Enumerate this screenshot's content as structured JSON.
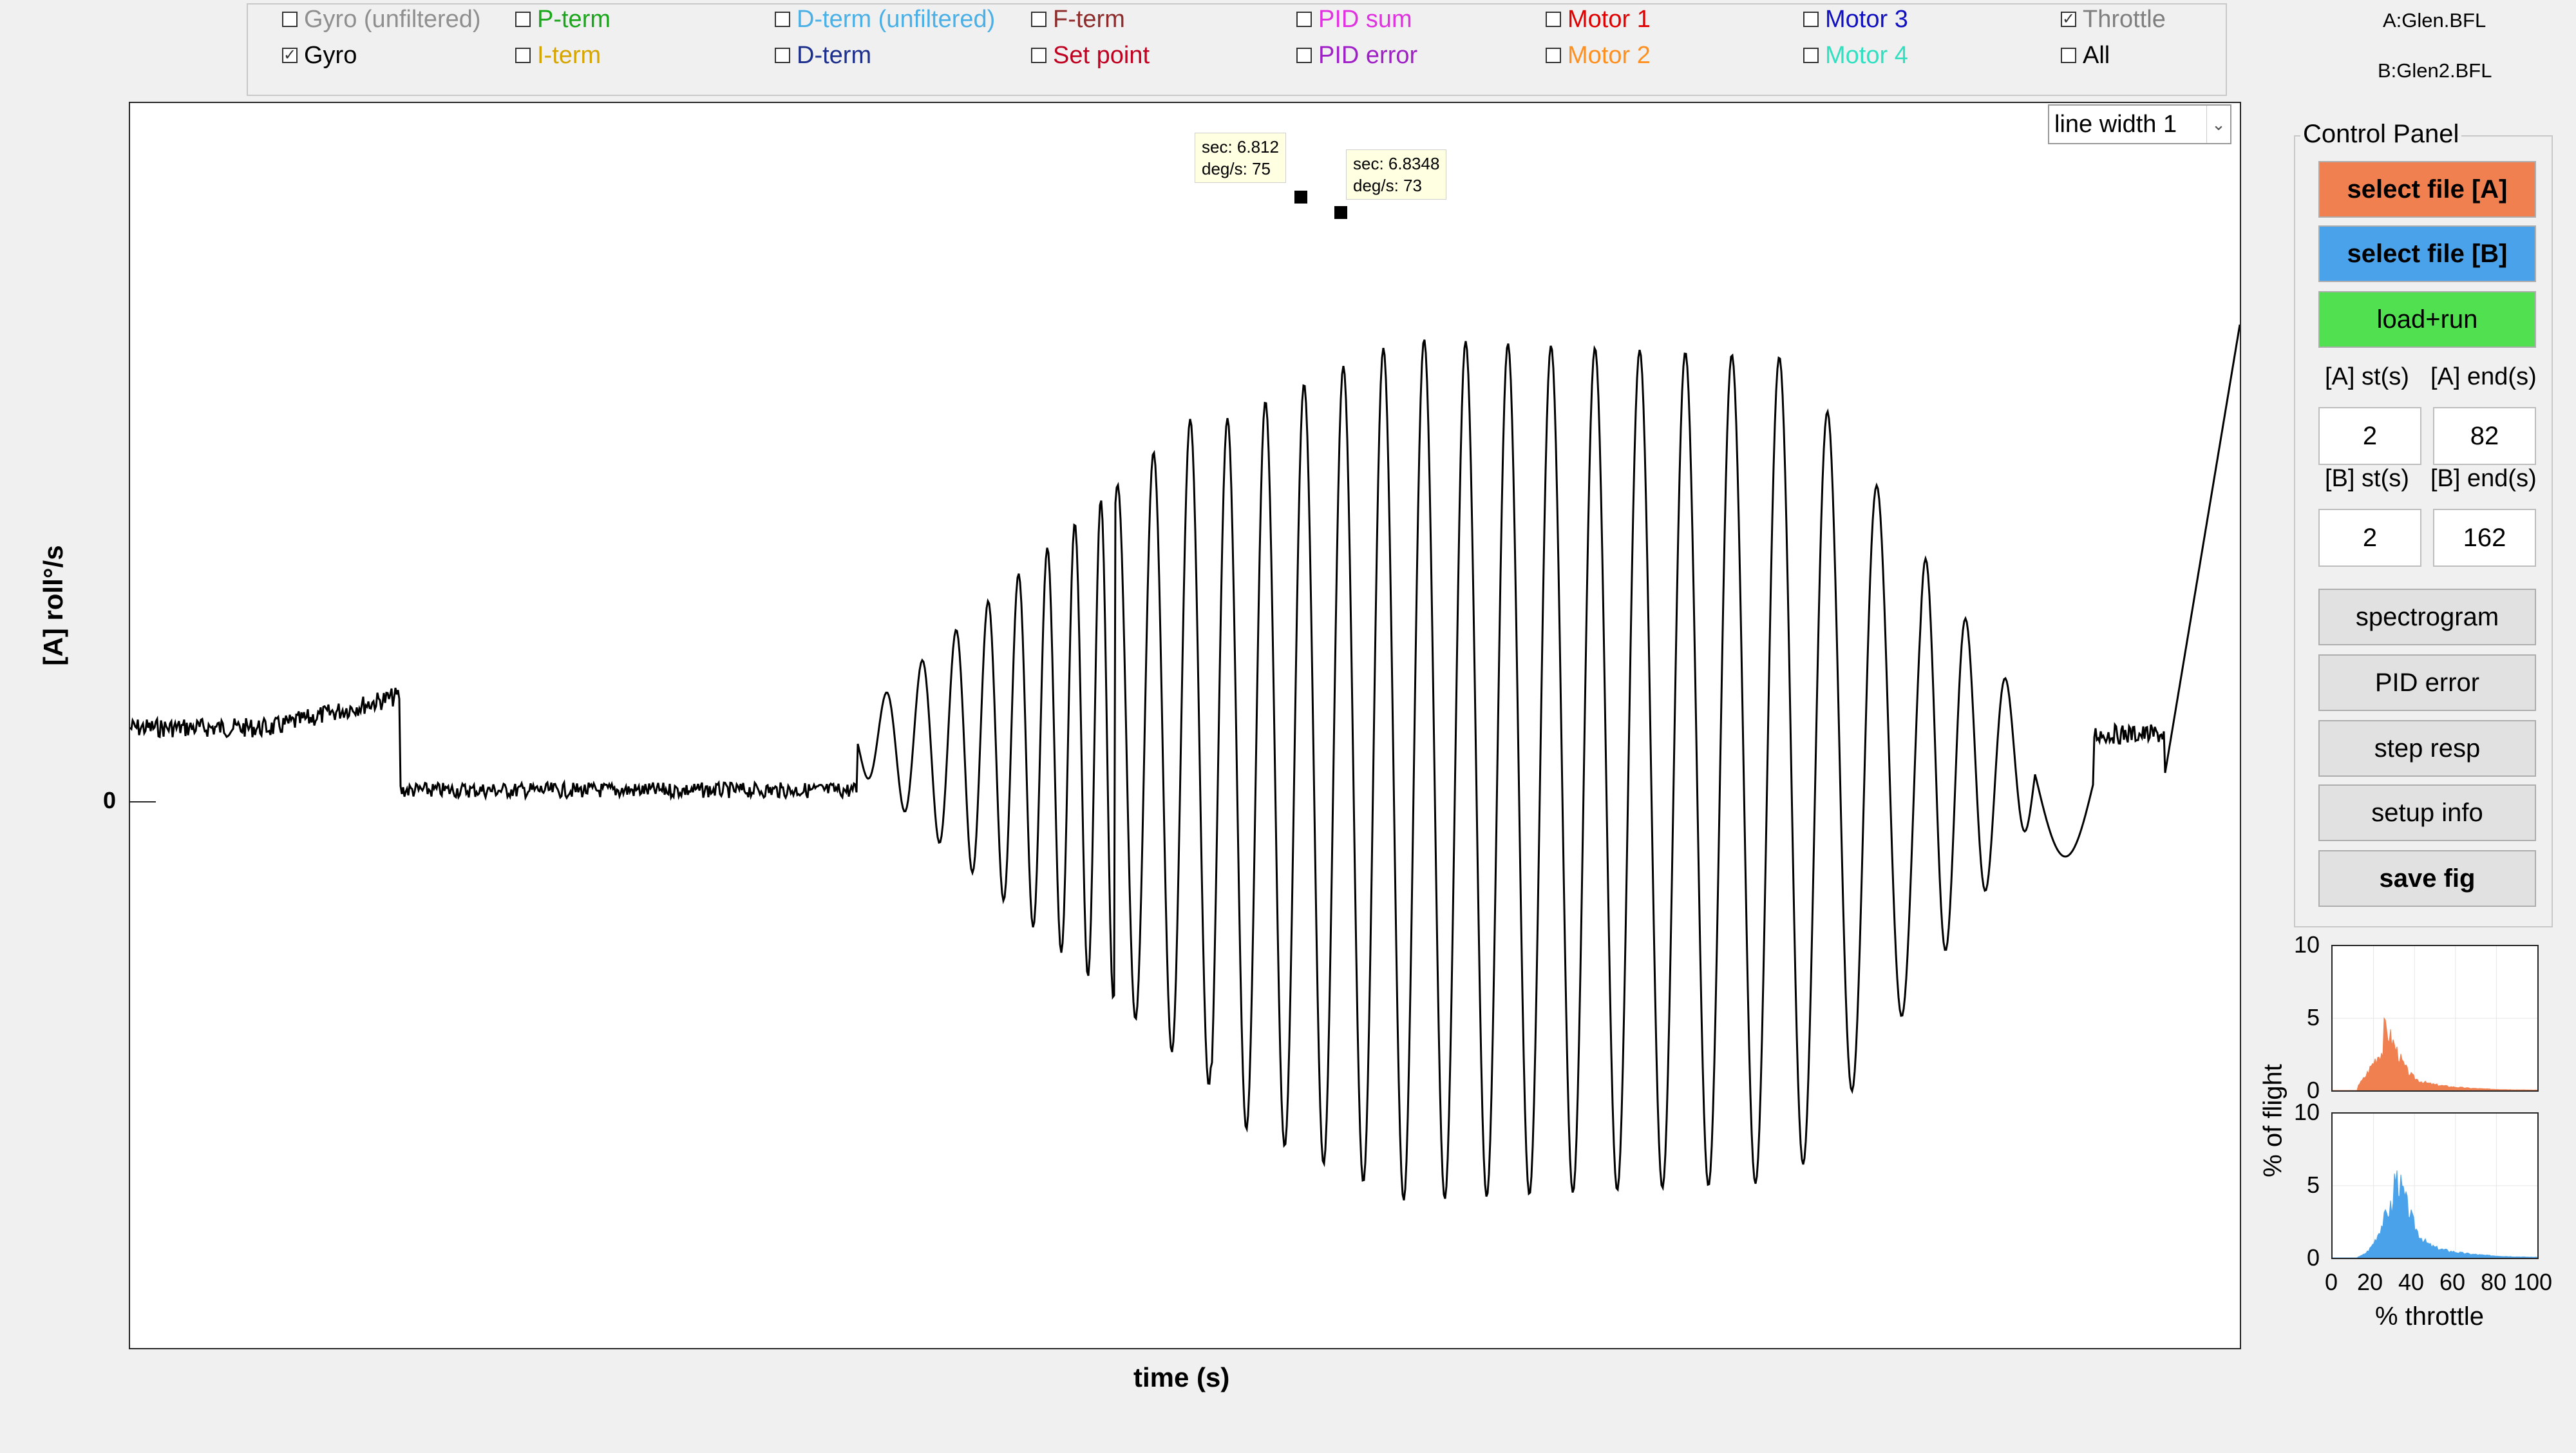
{
  "checkboxes": [
    {
      "label": "Gyro (unfiltered)",
      "checked": false,
      "color": "#8f8f8f"
    },
    {
      "label": "Gyro",
      "checked": true,
      "color": "#000000"
    },
    {
      "label": "P-term",
      "checked": false,
      "color": "#1aa61a"
    },
    {
      "label": "I-term",
      "checked": false,
      "color": "#d6a500"
    },
    {
      "label": "D-term (unfiltered)",
      "checked": false,
      "color": "#4ab0e6"
    },
    {
      "label": "D-term",
      "checked": false,
      "color": "#1c2f8c"
    },
    {
      "label": "F-term",
      "checked": false,
      "color": "#8e2b2b"
    },
    {
      "label": "Set point",
      "checked": false,
      "color": "#c00020"
    },
    {
      "label": "PID sum",
      "checked": false,
      "color": "#e032e0"
    },
    {
      "label": "PID error",
      "checked": false,
      "color": "#a020c8"
    },
    {
      "label": "Motor 1",
      "checked": false,
      "color": "#e00000"
    },
    {
      "label": "Motor 2",
      "checked": false,
      "color": "#ff9020"
    },
    {
      "label": "Motor 3",
      "checked": false,
      "color": "#1010c0"
    },
    {
      "label": "Motor 4",
      "checked": false,
      "color": "#30e0c0"
    },
    {
      "label": "Throttle",
      "checked": true,
      "color": "#7f7f7f"
    },
    {
      "label": "All",
      "checked": false,
      "color": "#000000"
    }
  ],
  "files": {
    "a": "A:Glen.BFL",
    "b": "B:Glen2.BFL"
  },
  "main_plot": {
    "ylabel": "[A] roll°/s",
    "xlabel": "time (s)",
    "zero_tick": "0",
    "datatips": [
      {
        "sec": "sec: 6.812",
        "deg": "deg/s: 75"
      },
      {
        "sec": "sec: 6.8348",
        "deg": "deg/s: 73"
      }
    ]
  },
  "line_width_select": "line width 1",
  "control_panel": {
    "title": "Control Panel",
    "buttons": {
      "select_a": "select file [A]",
      "select_b": "select file [B]",
      "load_run": "load+run",
      "spectrogram": "spectrogram",
      "pid_error": "PID error",
      "step_resp": "step resp",
      "setup_info": "setup info",
      "save_fig": "save fig"
    },
    "colors": {
      "select_a": "#f08050",
      "select_b": "#4aa3ea",
      "load_run": "#50e050"
    },
    "labels": {
      "a_st": "[A] st(s)",
      "a_end": "[A] end(s)",
      "b_st": "[B] st(s)",
      "b_end": "[B] end(s)"
    },
    "values": {
      "a_st": "2",
      "a_end": "82",
      "b_st": "2",
      "b_end": "162"
    }
  },
  "histograms": {
    "ylabel": "% of flight",
    "xlabel": "% throttle",
    "yticks": [
      "10",
      "5",
      "0"
    ],
    "xticks": [
      "0",
      "20",
      "40",
      "60",
      "80",
      "100"
    ],
    "colors": {
      "a": "#f08050",
      "b": "#4aa3ea"
    }
  }
}
